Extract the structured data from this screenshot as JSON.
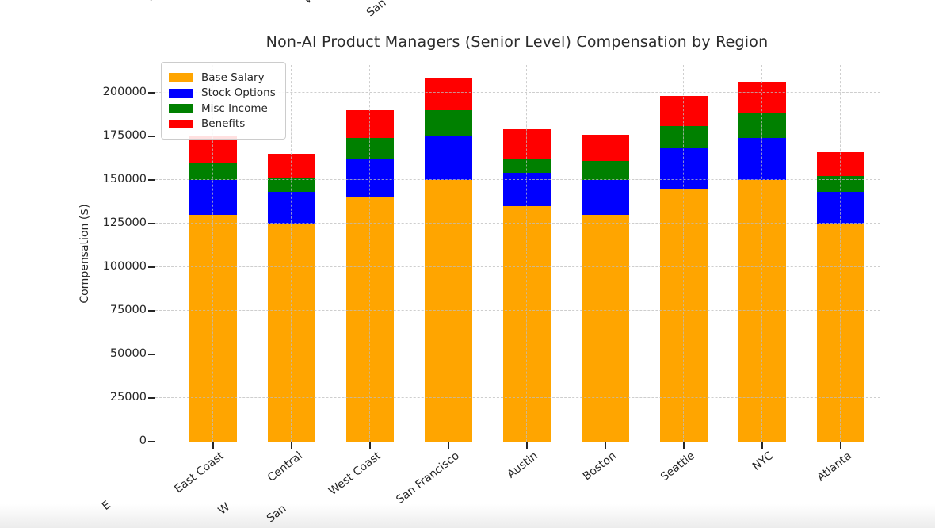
{
  "chart_data": {
    "type": "bar",
    "stacked": true,
    "title": "Non-AI Product Managers (Senior Level) Compensation by Region",
    "xlabel": "",
    "ylabel": "Compensation ($)",
    "categories": [
      "East Coast",
      "Central",
      "West Coast",
      "San Francisco",
      "Austin",
      "Boston",
      "Seattle",
      "NYC",
      "Atlanta"
    ],
    "series": [
      {
        "name": "Base Salary",
        "color": "#FFA500",
        "values": [
          130000,
          125000,
          140000,
          150000,
          135000,
          130000,
          145000,
          150000,
          125000
        ]
      },
      {
        "name": "Stock Options",
        "color": "#0000FF",
        "values": [
          20000,
          18000,
          22000,
          25000,
          19000,
          20000,
          23000,
          24000,
          18000
        ]
      },
      {
        "name": "Misc Income",
        "color": "#008000",
        "values": [
          10000,
          8000,
          12000,
          15000,
          8000,
          11000,
          13000,
          14000,
          9000
        ]
      },
      {
        "name": "Benefits",
        "color": "#FF0000",
        "values": [
          15000,
          14000,
          16000,
          18000,
          17000,
          15000,
          17000,
          18000,
          14000
        ]
      }
    ],
    "totals": [
      175000,
      165000,
      190000,
      208000,
      179000,
      176000,
      198000,
      206000,
      166000
    ],
    "yticks": [
      0,
      25000,
      50000,
      75000,
      100000,
      125000,
      150000,
      175000,
      200000
    ],
    "ylim": [
      0,
      215800
    ],
    "grid": "dashed",
    "legend_position": "upper left"
  },
  "edge_fragments": {
    "top": [
      {
        "text": "E"
      },
      {
        "text": "W"
      },
      {
        "text": "San"
      }
    ],
    "bottom": [
      {
        "text": "E"
      },
      {
        "text": "W"
      },
      {
        "text": "San"
      }
    ]
  }
}
